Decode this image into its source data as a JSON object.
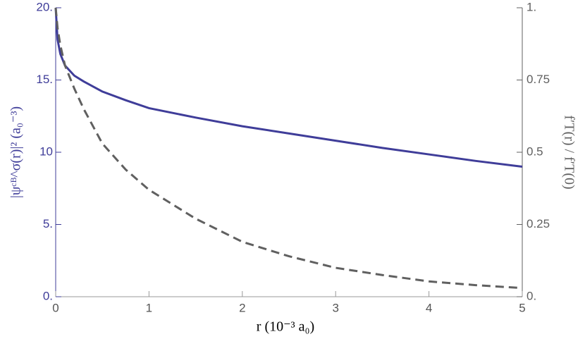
{
  "chart_data": {
    "type": "line",
    "xlabel": "r (10⁻³ a₀)",
    "ylabel": "|ψᶜᴮ^σ(r)|² (a₀⁻³)",
    "y2label": "f′T(r) / f′T(0)",
    "x": [
      0,
      0.02,
      0.05,
      0.1,
      0.2,
      0.3,
      0.5,
      0.75,
      1,
      1.5,
      2,
      2.5,
      3,
      3.5,
      4,
      4.5,
      5
    ],
    "series": [
      {
        "color": "#3f3d99",
        "dash": "solid",
        "values": [
          20,
          17.8,
          16.8,
          16.0,
          15.3,
          14.9,
          14.2,
          13.6,
          13.05,
          12.4,
          11.8,
          11.3,
          10.8,
          10.3,
          9.85,
          9.4,
          9.0
        ]
      },
      {
        "color": "#606060",
        "dash": "dashed",
        "axis": "y2",
        "values": [
          1,
          0.93,
          0.87,
          0.8,
          0.72,
          0.65,
          0.53,
          0.44,
          0.37,
          0.27,
          0.19,
          0.14,
          0.1,
          0.075,
          0.053,
          0.04,
          0.03
        ]
      }
    ],
    "xlim": [
      0,
      5
    ],
    "xticks": [
      0,
      1,
      2,
      3,
      4,
      5
    ],
    "ylim": [
      0,
      20
    ],
    "yticks": [
      {
        "value": 0,
        "label": "0."
      },
      {
        "value": 5,
        "label": "5."
      },
      10,
      {
        "value": 15,
        "label": "15."
      },
      {
        "value": 20,
        "label": "20."
      }
    ],
    "y2lim": [
      0,
      1
    ],
    "y2ticks": [
      {
        "value": 0,
        "label": "0."
      },
      0.25,
      0.5,
      0.75,
      {
        "value": 1,
        "label": "1."
      }
    ],
    "ycolor": "#3f3d99",
    "y2color": "#606060"
  }
}
